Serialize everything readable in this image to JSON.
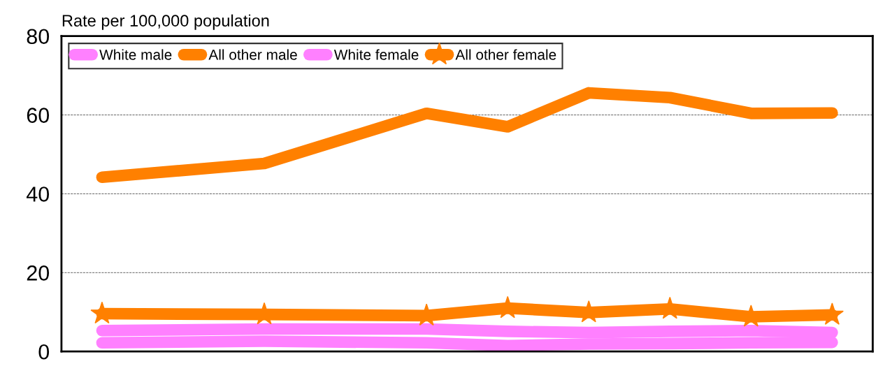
{
  "chart_data": {
    "type": "line",
    "title": "Rate per 100,000 population",
    "categories": [
      null,
      null,
      null,
      null,
      null,
      null,
      null,
      null,
      null,
      null
    ],
    "tick_labels": "y",
    "ylim": [
      0,
      80
    ],
    "yticks": [
      0,
      20,
      40,
      60,
      80
    ],
    "grid": "y",
    "legend": "top left",
    "series": [
      {
        "name": "White male",
        "color": "#ff80ff",
        "values": [
          5.3,
          null,
          5.7,
          null,
          5.7,
          5.1,
          4.8,
          5.1,
          5.3,
          4.8
        ]
      },
      {
        "name": "All other male",
        "color": "#ff8000",
        "values": [
          44.2,
          null,
          47.7,
          null,
          60.4,
          57.0,
          65.6,
          64.4,
          60.4,
          60.5
        ]
      },
      {
        "name": "White female",
        "color": "#ff80ff",
        "values": [
          2.2,
          null,
          2.6,
          null,
          2.2,
          1.5,
          1.9,
          2.0,
          2.2,
          2.3
        ]
      },
      {
        "name": "All other female",
        "color": "#ff8000",
        "marker": "star",
        "values": [
          9.6,
          null,
          9.4,
          null,
          9.1,
          11.0,
          9.9,
          10.8,
          8.8,
          9.3
        ]
      }
    ]
  }
}
